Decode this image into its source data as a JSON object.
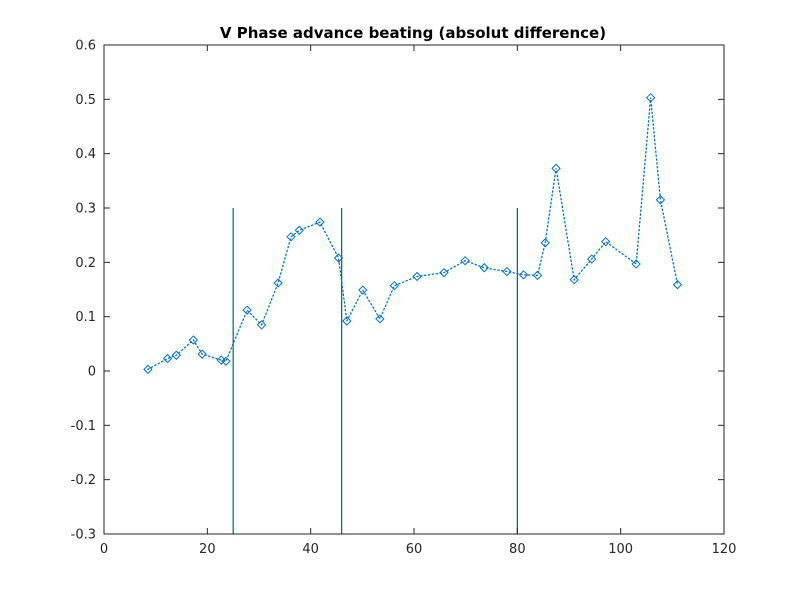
{
  "chart_data": {
    "type": "scatter",
    "title": "V Phase advance beating (absolut difference)",
    "xlabel": "",
    "ylabel": "",
    "xlim": [
      0,
      120
    ],
    "ylim": [
      -0.3,
      0.6
    ],
    "xticks": [
      0,
      20,
      40,
      60,
      80,
      100,
      120
    ],
    "xtick_labels": [
      "0",
      "20",
      "40",
      "60",
      "80",
      "100",
      "120"
    ],
    "yticks": [
      -0.3,
      -0.2,
      -0.1,
      0,
      0.1,
      0.2,
      0.3,
      0.4,
      0.5,
      0.6
    ],
    "ytick_labels": [
      "-0.3",
      "-0.2",
      "-0.1",
      "0",
      "0.1",
      "0.2",
      "0.3",
      "0.4",
      "0.5",
      "0.6"
    ],
    "grid": false,
    "line_style": "dotted",
    "marker": "diamond",
    "series_color": "#0072BD",
    "vline_color": "#006666",
    "x": [
      8.5,
      12.3,
      14,
      17.3,
      19,
      22.7,
      23.6,
      27.7,
      30.5,
      33.7,
      36.2,
      37.8,
      41.8,
      45.4,
      47,
      50.1,
      53.4,
      56.2,
      60.6,
      65.8,
      69.9,
      73.6,
      78,
      81.2,
      83.9,
      85.4,
      87.5,
      91,
      94.4,
      97.1,
      103,
      105.8,
      107.7,
      111
    ],
    "y": [
      0.003,
      0.023,
      0.029,
      0.057,
      0.031,
      0.02,
      0.018,
      0.112,
      0.085,
      0.162,
      0.247,
      0.259,
      0.274,
      0.208,
      0.092,
      0.149,
      0.096,
      0.157,
      0.174,
      0.181,
      0.203,
      0.19,
      0.183,
      0.177,
      0.176,
      0.236,
      0.373,
      0.168,
      0.206,
      0.238,
      0.197,
      0.503,
      0.315,
      0.159
    ],
    "vlines": [
      {
        "x": 25,
        "y_from": -0.3,
        "y_to": 0.3
      },
      {
        "x": 46,
        "y_from": -0.3,
        "y_to": 0.3
      },
      {
        "x": 80,
        "y_from": -0.3,
        "y_to": 0.3
      }
    ]
  }
}
